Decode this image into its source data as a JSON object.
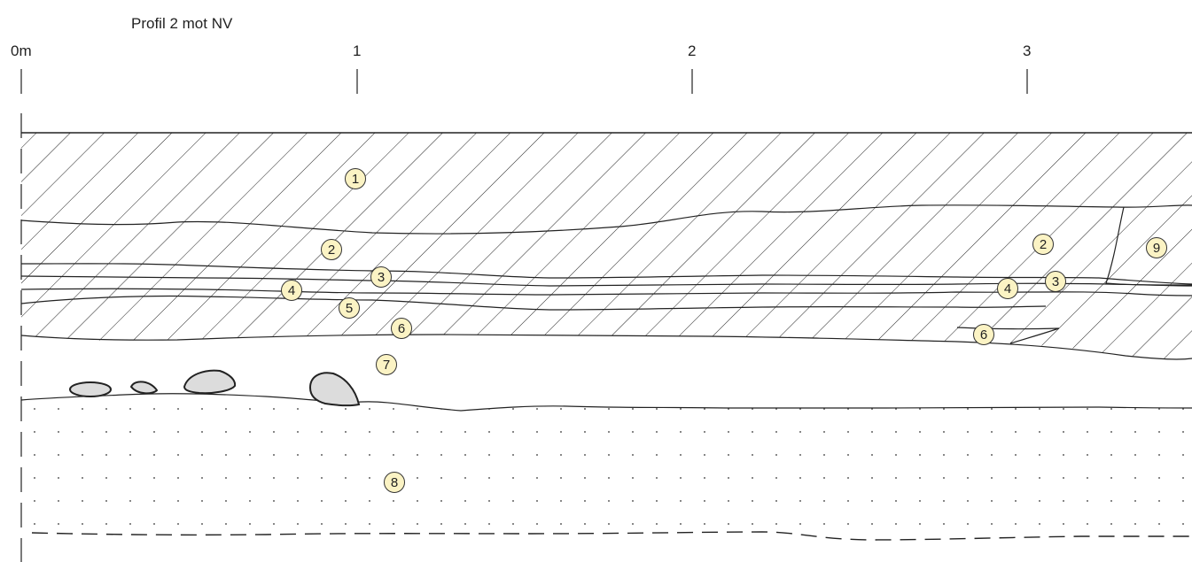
{
  "title": "Profil 2 mot NV",
  "scale": {
    "ticks": [
      {
        "label": "0m"
      },
      {
        "label": "1"
      },
      {
        "label": "2"
      },
      {
        "label": "3"
      }
    ]
  },
  "layer_labels": [
    {
      "num": "1"
    },
    {
      "num": "2"
    },
    {
      "num": "3"
    },
    {
      "num": "4"
    },
    {
      "num": "5"
    },
    {
      "num": "6"
    },
    {
      "num": "7"
    },
    {
      "num": "2"
    },
    {
      "num": "3"
    },
    {
      "num": "4"
    },
    {
      "num": "6"
    },
    {
      "num": "9"
    },
    {
      "num": "8"
    }
  ],
  "colors": {
    "label_fill": "#fbf3c4",
    "stone_fill": "#dcdcdc",
    "line": "#222222"
  }
}
